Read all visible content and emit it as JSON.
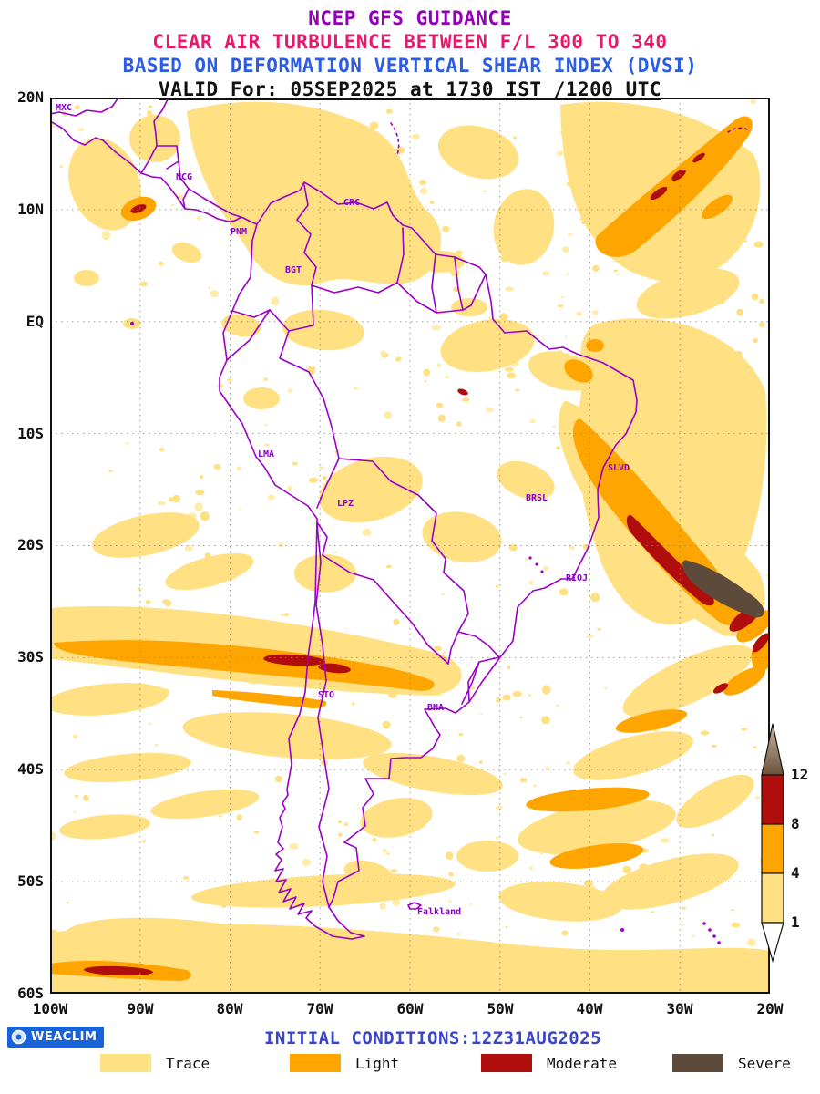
{
  "header": {
    "line1": "NCEP GFS GUIDANCE",
    "line2": "CLEAR AIR TURBULENCE BETWEEN F/L 300 TO 340",
    "line3": "BASED ON DEFORMATION VERTICAL SHEAR INDEX (DVSI)",
    "line4": "VALID For: 05SEP2025 at 1730 IST /1200 UTC"
  },
  "map": {
    "y_ticks": [
      "20N",
      "10N",
      "EQ",
      "10S",
      "20S",
      "30S",
      "40S",
      "50S",
      "60S"
    ],
    "x_ticks": [
      "100W",
      "90W",
      "80W",
      "70W",
      "60W",
      "50W",
      "40W",
      "30W",
      "20W"
    ],
    "cities": [
      "MXC",
      "NCG",
      "CRC",
      "PNM",
      "BGT",
      "LMA",
      "LPZ",
      "BRSL",
      "SLVD",
      "RIOJ",
      "STO",
      "BNA",
      "Falkland"
    ]
  },
  "colorbar": {
    "ticks": [
      "12",
      "8",
      "4",
      "1"
    ]
  },
  "legend": {
    "items": [
      {
        "label": "Trace",
        "color": "#FFE184"
      },
      {
        "label": "Light",
        "color": "#FFA500"
      },
      {
        "label": "Moderate",
        "color": "#B00D0D"
      },
      {
        "label": "Severe",
        "color": "#5E4A3A"
      }
    ]
  },
  "footer": {
    "logo_text": "WEACLIM",
    "initial_conditions": "INITIAL CONDITIONS:12Z31AUG2025"
  },
  "colors": {
    "title_purple": "#9400B8",
    "title_pink": "#E8186D",
    "title_blue": "#2B5CE6",
    "trace_yellow": "#FFE184",
    "light_orange": "#FFA500",
    "moderate_red": "#B00D0D",
    "severe_brown": "#5E4A3A",
    "map_border_purple": "#9B00C8",
    "logo_blue": "#1A63D6",
    "initial_blue": "#3A46C8"
  },
  "chart_data": {
    "type": "heatmap",
    "title": "Clear Air Turbulence (DVSI) between F/L 300 and 340",
    "x_range_deg": [
      "100W",
      "20W"
    ],
    "y_range_deg": [
      "20N",
      "60S"
    ],
    "x_ticks": [
      "100W",
      "90W",
      "80W",
      "70W",
      "60W",
      "50W",
      "40W",
      "30W",
      "20W"
    ],
    "y_ticks": [
      "20N",
      "10N",
      "EQ",
      "10S",
      "20S",
      "30S",
      "40S",
      "50S",
      "60S"
    ],
    "colorbar_levels": [
      1,
      4,
      8,
      12
    ],
    "intensity_classes": [
      "Trace",
      "Light",
      "Moderate",
      "Severe"
    ],
    "valid_time": "05SEP2025 at 1730 IST /1200 UTC",
    "initial_conditions": "12Z31AUG2025",
    "notable_features": [
      {
        "intensity": "Severe",
        "location": "offshore SE Brazil near 30W 22S"
      },
      {
        "intensity": "Moderate",
        "location": "along Brazil east coast band 38W 15S to 30W 23S"
      },
      {
        "intensity": "Moderate",
        "location": "Pacific band near Chile coast 73W 30S"
      },
      {
        "intensity": "Light",
        "location": "zonal band 100W-60W near 28S-30S"
      },
      {
        "intensity": "Light",
        "location": "north Atlantic diagonal band near 30W 8N"
      },
      {
        "intensity": "Light",
        "location": "bottom-left band near 95W 58S"
      },
      {
        "intensity": "Trace",
        "location": "widespread speckled coverage over tropics and South Atlantic"
      }
    ]
  }
}
